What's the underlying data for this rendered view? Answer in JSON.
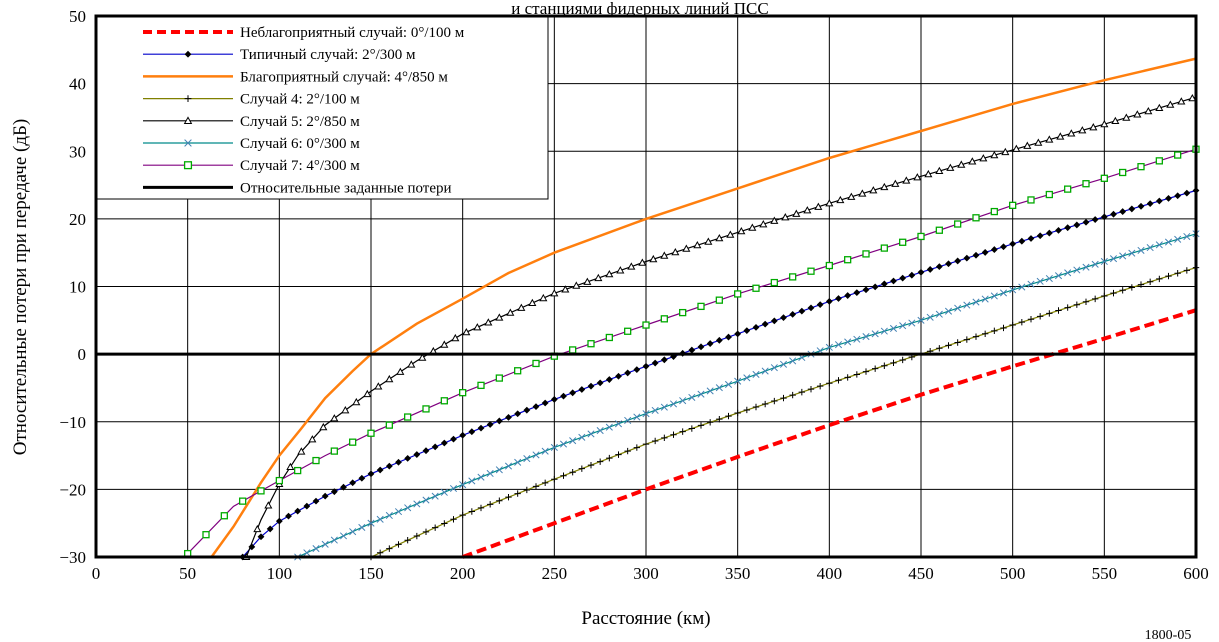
{
  "chart_data": {
    "type": "line",
    "title": "и станциями фидерных линий ПСС",
    "xlabel": "Расстояние (км)",
    "ylabel": "Относительные потери при передаче (дБ)",
    "xlim": [
      0,
      600
    ],
    "ylim": [
      -30,
      50
    ],
    "xticks": [
      "0",
      "50",
      "100",
      "150",
      "200",
      "250",
      "300",
      "350",
      "400",
      "450",
      "500",
      "550",
      "600"
    ],
    "yticks": [
      "−30",
      "−20",
      "−10",
      "0",
      "10",
      "20",
      "30",
      "40",
      "50"
    ],
    "grid": true,
    "legend_position": "top-left",
    "figure_id": "1800-05",
    "series": [
      {
        "name": "Неблагоприятный случай: 0°/100 м",
        "color": "#ff0000",
        "style": "dashed",
        "marker": "none",
        "points": [
          [
            200,
            -30
          ],
          [
            250,
            -25
          ],
          [
            300,
            -20
          ],
          [
            350,
            -15.2
          ],
          [
            400,
            -10.5
          ],
          [
            450,
            -6
          ],
          [
            500,
            -1.8
          ],
          [
            550,
            2.3
          ],
          [
            600,
            6.5
          ]
        ]
      },
      {
        "name": "Типичный случай: 2°/300 м",
        "color": "#0000cc",
        "style": "solid",
        "marker": "diamond",
        "points": [
          [
            80,
            -30
          ],
          [
            90,
            -27
          ],
          [
            100,
            -24.7
          ],
          [
            125,
            -21
          ],
          [
            150,
            -17.7
          ],
          [
            200,
            -12
          ],
          [
            250,
            -6.7
          ],
          [
            300,
            -1.8
          ],
          [
            350,
            3
          ],
          [
            400,
            7.8
          ],
          [
            450,
            12.1
          ],
          [
            500,
            16.3
          ],
          [
            550,
            20.3
          ],
          [
            600,
            24.2
          ]
        ]
      },
      {
        "name": "Благоприятный случай: 4°/850 м",
        "color": "#ff7f0e",
        "style": "solid",
        "marker": "none",
        "points": [
          [
            63,
            -30
          ],
          [
            75,
            -25.5
          ],
          [
            90,
            -19
          ],
          [
            100,
            -15
          ],
          [
            112,
            -11
          ],
          [
            125,
            -6.5
          ],
          [
            140,
            -2.5
          ],
          [
            150,
            0
          ],
          [
            175,
            4.5
          ],
          [
            200,
            8.2
          ],
          [
            225,
            12
          ],
          [
            250,
            15
          ],
          [
            300,
            20
          ],
          [
            350,
            24.5
          ],
          [
            400,
            29
          ],
          [
            450,
            33
          ],
          [
            500,
            37
          ],
          [
            550,
            40.5
          ],
          [
            600,
            43.7
          ]
        ]
      },
      {
        "name": "Случай 4: 2°/100 м",
        "color": "#808000",
        "style": "solid",
        "marker": "plus",
        "points": [
          [
            150,
            -30
          ],
          [
            200,
            -23.8
          ],
          [
            250,
            -18.5
          ],
          [
            300,
            -13.3
          ],
          [
            350,
            -8.7
          ],
          [
            400,
            -4.3
          ],
          [
            450,
            0
          ],
          [
            500,
            4.3
          ],
          [
            550,
            8.6
          ],
          [
            600,
            12.8
          ]
        ]
      },
      {
        "name": "Случай 5: 2°/850 м",
        "color": "#000000",
        "style": "solid",
        "marker": "triangle",
        "points": [
          [
            82,
            -30
          ],
          [
            90,
            -24.5
          ],
          [
            100,
            -19.2
          ],
          [
            110,
            -15
          ],
          [
            125,
            -10.5
          ],
          [
            150,
            -5.5
          ],
          [
            175,
            -1
          ],
          [
            200,
            3
          ],
          [
            250,
            9
          ],
          [
            300,
            13.7
          ],
          [
            350,
            18
          ],
          [
            400,
            22.3
          ],
          [
            450,
            26.3
          ],
          [
            500,
            30.2
          ],
          [
            550,
            34
          ],
          [
            600,
            38
          ]
        ]
      },
      {
        "name": "Случай 6: 0°/300 м",
        "color": "#008b8b",
        "style": "solid",
        "marker": "x",
        "points": [
          [
            110,
            -30
          ],
          [
            150,
            -25
          ],
          [
            200,
            -19.3
          ],
          [
            250,
            -13.8
          ],
          [
            300,
            -8.8
          ],
          [
            350,
            -4
          ],
          [
            400,
            1
          ],
          [
            450,
            5
          ],
          [
            500,
            9.5
          ],
          [
            550,
            13.7
          ],
          [
            600,
            17.8
          ]
        ]
      },
      {
        "name": "Случай 7: 4°/300 м",
        "color": "#800080",
        "marker_color": "#00aa00",
        "style": "solid",
        "marker": "square",
        "points": [
          [
            50,
            -29.5
          ],
          [
            75,
            -22.5
          ],
          [
            100,
            -18.7
          ],
          [
            125,
            -15
          ],
          [
            150,
            -11.7
          ],
          [
            200,
            -5.7
          ],
          [
            250,
            -0.3
          ],
          [
            300,
            4.3
          ],
          [
            350,
            8.9
          ],
          [
            400,
            13.1
          ],
          [
            450,
            17.4
          ],
          [
            500,
            22
          ],
          [
            550,
            26
          ],
          [
            600,
            30.3
          ]
        ]
      },
      {
        "name": "Относительные заданные потери",
        "color": "#000000",
        "style": "thick",
        "marker": "none",
        "points": [
          [
            0,
            0
          ],
          [
            600,
            0
          ]
        ]
      }
    ]
  }
}
